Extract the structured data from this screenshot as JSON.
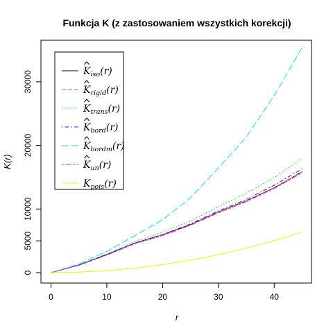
{
  "chart_data": {
    "type": "line",
    "title": "Funkcja K (z zastosowaniem wszystkich korekcji)",
    "xlabel": "r",
    "ylabel": "K(r)",
    "xlim": [
      0,
      45
    ],
    "ylim": [
      0,
      35000
    ],
    "x_ticks": [
      0,
      10,
      20,
      30,
      40
    ],
    "y_ticks": [
      0,
      5000,
      10000,
      20000,
      30000
    ],
    "grid": false,
    "legend_position": "top-left",
    "x": [
      0,
      5,
      10,
      15,
      20,
      25,
      30,
      35,
      40,
      45
    ],
    "series": [
      {
        "name": "K̂iso(r)",
        "base": "K",
        "sub": "iso",
        "hat": true,
        "color": "#000000",
        "dash": "solid",
        "values": [
          0,
          1200,
          2850,
          4650,
          5950,
          7550,
          9550,
          11300,
          13350,
          15850
        ]
      },
      {
        "name": "K̂rigid(r)",
        "base": "K",
        "sub": "rigid",
        "hat": true,
        "color": "#df536b",
        "dash": "dashed",
        "values": [
          0,
          1200,
          2850,
          4650,
          5950,
          7550,
          9550,
          11300,
          13350,
          15850
        ]
      },
      {
        "name": "K̂trans(r)",
        "base": "K",
        "sub": "trans",
        "hat": true,
        "color": "#22c222",
        "dash": "dotted",
        "values": [
          0,
          1250,
          2950,
          4900,
          6350,
          8100,
          10350,
          12500,
          14950,
          17950
        ]
      },
      {
        "name": "K̂bord(r)",
        "base": "K",
        "sub": "bord",
        "hat": true,
        "color": "#2020d0",
        "dash": "dotdash",
        "values": [
          0,
          1200,
          2850,
          4650,
          6000,
          7650,
          9700,
          11500,
          13750,
          16300
        ]
      },
      {
        "name": "K̂bordm(r)",
        "base": "K",
        "sub": "bordm",
        "hat": true,
        "color": "#22d6e6",
        "dash": "longdash",
        "values": [
          0,
          1350,
          3350,
          5800,
          8300,
          11800,
          16450,
          21300,
          27800,
          35400
        ]
      },
      {
        "name": "K̂un(r)",
        "base": "K",
        "sub": "un",
        "hat": true,
        "color": "#c93cc9",
        "dash": "twodash",
        "values": [
          0,
          1150,
          2750,
          4550,
          5800,
          7450,
          9400,
          11150,
          13200,
          15700
        ]
      },
      {
        "name": "Kpois(r)",
        "base": "K",
        "sub": "pois",
        "hat": false,
        "color": "#ffee00",
        "dash": "solid",
        "values": [
          0,
          79,
          314,
          707,
          1257,
          1963,
          2827,
          3848,
          5027,
          6362
        ]
      }
    ]
  }
}
